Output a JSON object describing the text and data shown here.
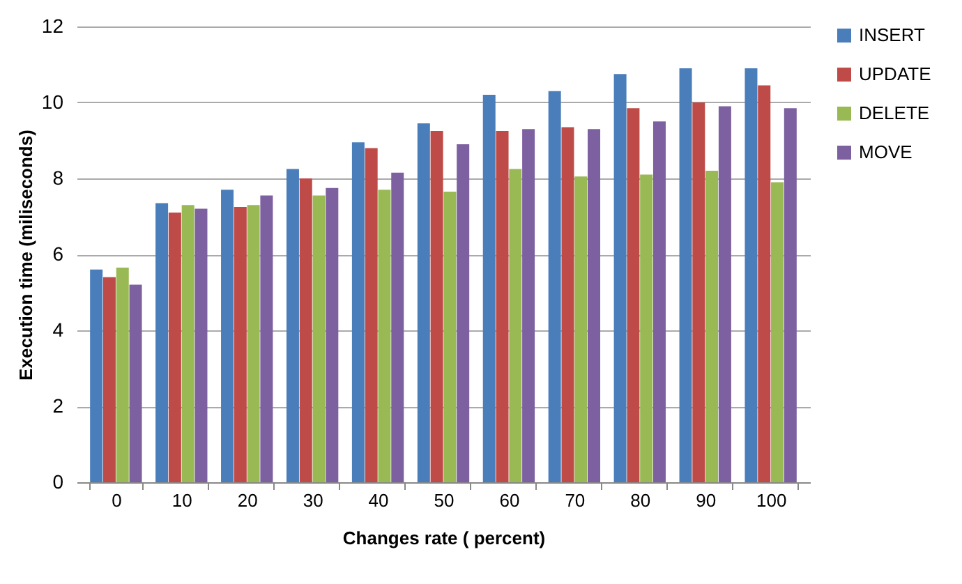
{
  "chart_data": {
    "type": "bar",
    "xlabel": "Changes rate ( percent)",
    "ylabel": "Execution time (miliseconds)",
    "categories": [
      "0",
      "10",
      "20",
      "30",
      "40",
      "50",
      "60",
      "70",
      "80",
      "90",
      "100"
    ],
    "series": [
      {
        "name": "INSERT",
        "color": "#4a7ebb",
        "values": [
          5.6,
          7.35,
          7.7,
          8.25,
          8.95,
          9.45,
          10.2,
          10.3,
          10.75,
          10.9,
          10.9
        ]
      },
      {
        "name": "UPDATE",
        "color": "#be4b48",
        "values": [
          5.4,
          7.1,
          7.25,
          8.0,
          8.8,
          9.25,
          9.25,
          9.35,
          9.85,
          10.0,
          10.45
        ]
      },
      {
        "name": "DELETE",
        "color": "#98b954",
        "values": [
          5.65,
          7.3,
          7.3,
          7.55,
          7.7,
          7.65,
          8.25,
          8.05,
          8.1,
          8.2,
          7.9
        ]
      },
      {
        "name": "MOVE",
        "color": "#7d60a0",
        "values": [
          5.2,
          7.2,
          7.55,
          7.75,
          8.15,
          8.9,
          9.3,
          9.3,
          9.5,
          9.9,
          9.85
        ]
      }
    ],
    "ylim": [
      0,
      12
    ],
    "yticks": [
      0,
      2,
      4,
      6,
      8,
      10,
      12
    ],
    "grid": "y",
    "legend": "right"
  }
}
